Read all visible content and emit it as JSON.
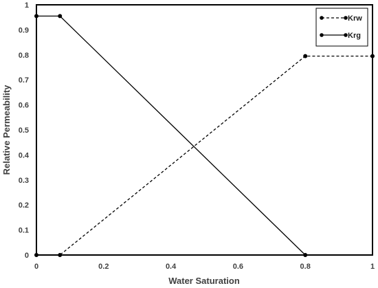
{
  "chart_data": {
    "type": "line",
    "xlabel": "Water Saturation",
    "ylabel": "Relative Permeability",
    "xlim": [
      0,
      1
    ],
    "ylim": [
      0,
      1
    ],
    "x_ticks": [
      "0",
      "0.2",
      "0.4",
      "0.6",
      "0.8",
      "1"
    ],
    "y_ticks": [
      "0",
      "0.1",
      "0.2",
      "0.3",
      "0.4",
      "0.5",
      "0.6",
      "0.7",
      "0.8",
      "0.9",
      "1"
    ],
    "grid": false,
    "legend_position": "top-right",
    "series": [
      {
        "name": "Krw",
        "style": "dashed",
        "marker": "circle",
        "color": "#000000",
        "x": [
          0,
          0.07,
          0.8,
          1
        ],
        "y": [
          0,
          0,
          0.795,
          0.795
        ]
      },
      {
        "name": "Krg",
        "style": "solid",
        "marker": "circle",
        "color": "#000000",
        "x": [
          0,
          0.07,
          0.8
        ],
        "y": [
          0.955,
          0.955,
          0
        ]
      }
    ]
  }
}
